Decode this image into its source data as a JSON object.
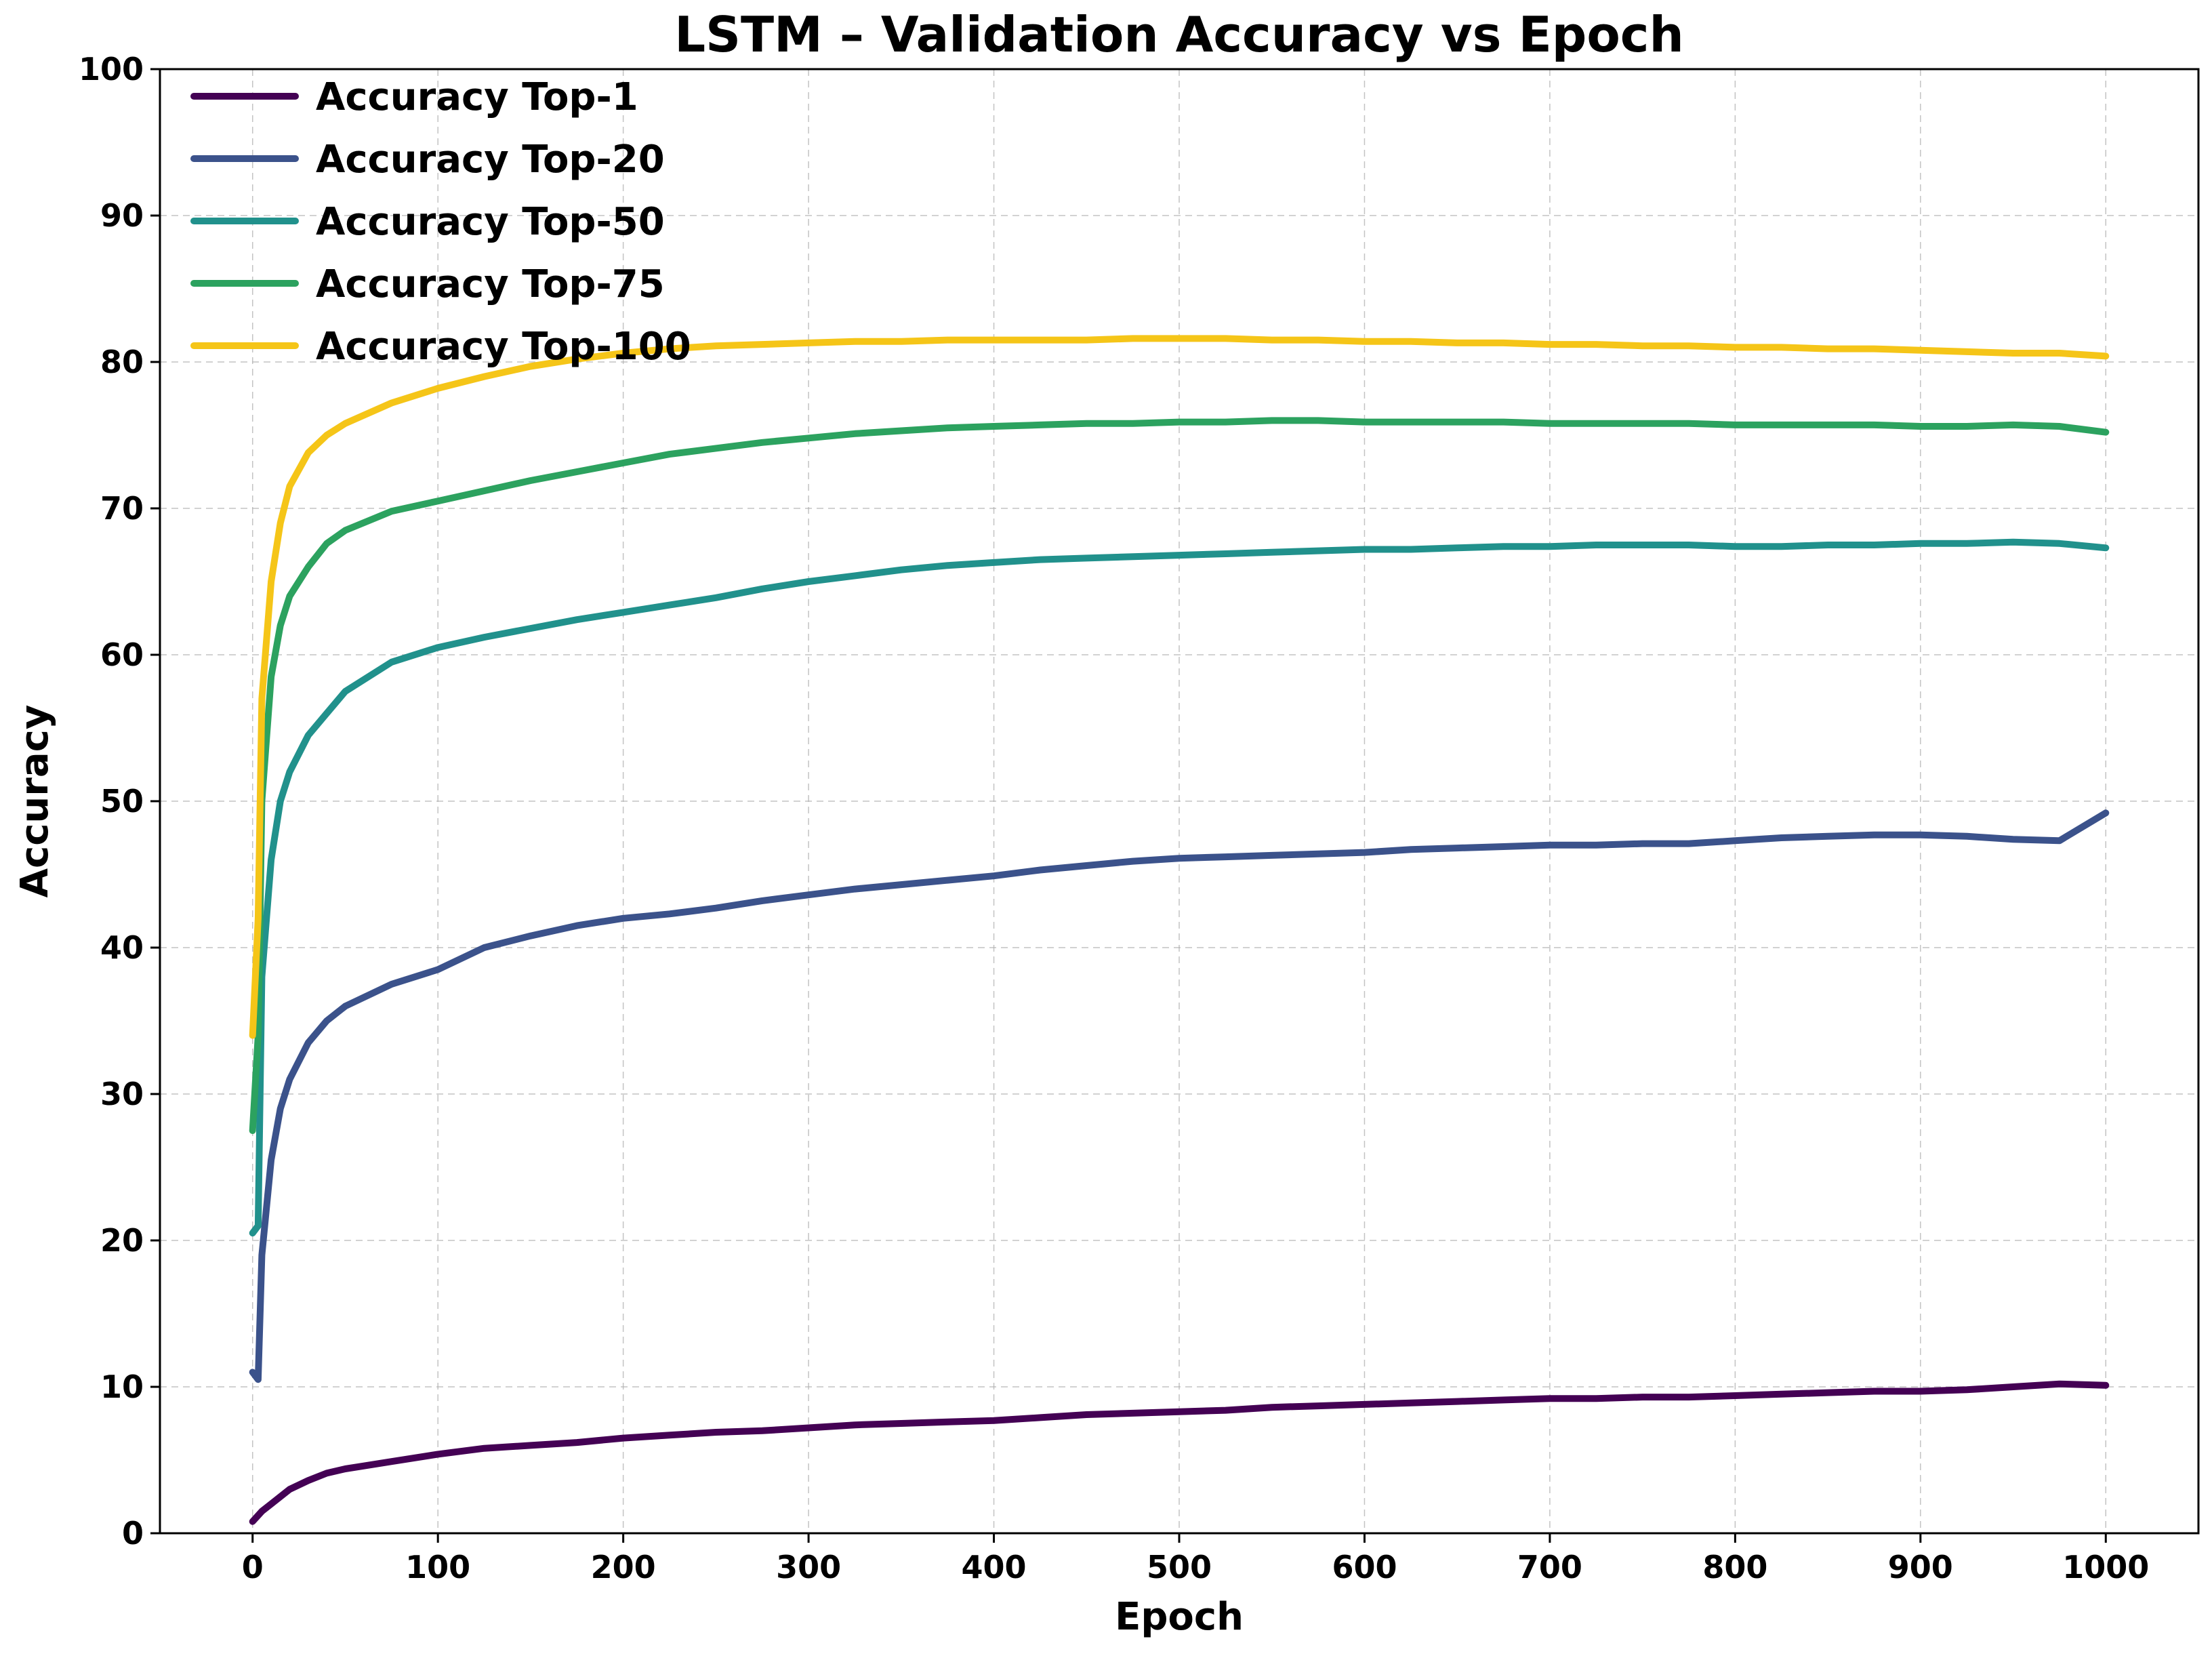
{
  "chart_data": {
    "type": "line",
    "title": "LSTM – Validation Accuracy vs Epoch",
    "xlabel": "Epoch",
    "ylabel": "Accuracy",
    "xlim": [
      -50,
      1050
    ],
    "ylim": [
      0,
      100
    ],
    "xticks": [
      0,
      100,
      200,
      300,
      400,
      500,
      600,
      700,
      800,
      900,
      1000
    ],
    "yticks": [
      0,
      10,
      20,
      30,
      40,
      50,
      60,
      70,
      80,
      90,
      100
    ],
    "grid": true,
    "legend_location": "top-left",
    "series": [
      {
        "name": "Accuracy Top-1",
        "color": "#440154",
        "x": [
          0,
          5,
          10,
          20,
          30,
          40,
          50,
          75,
          100,
          125,
          150,
          175,
          200,
          225,
          250,
          275,
          300,
          325,
          350,
          375,
          400,
          425,
          450,
          475,
          500,
          525,
          550,
          575,
          600,
          625,
          650,
          675,
          700,
          725,
          750,
          775,
          800,
          825,
          850,
          875,
          900,
          925,
          950,
          975,
          1000
        ],
        "values": [
          0.8,
          1.5,
          2.0,
          3.0,
          3.6,
          4.1,
          4.4,
          4.9,
          5.4,
          5.8,
          6.0,
          6.2,
          6.5,
          6.7,
          6.9,
          7.0,
          7.2,
          7.4,
          7.5,
          7.6,
          7.7,
          7.9,
          8.1,
          8.2,
          8.3,
          8.4,
          8.6,
          8.7,
          8.8,
          8.9,
          9.0,
          9.1,
          9.2,
          9.2,
          9.3,
          9.3,
          9.4,
          9.5,
          9.6,
          9.7,
          9.7,
          9.8,
          10.0,
          10.2,
          10.1
        ]
      },
      {
        "name": "Accuracy Top-20",
        "color": "#3b528b",
        "x": [
          0,
          3,
          5,
          10,
          15,
          20,
          30,
          40,
          50,
          75,
          100,
          125,
          150,
          175,
          200,
          225,
          250,
          275,
          300,
          325,
          350,
          375,
          400,
          425,
          450,
          475,
          500,
          525,
          550,
          575,
          600,
          625,
          650,
          675,
          700,
          725,
          750,
          775,
          800,
          825,
          850,
          875,
          900,
          925,
          950,
          975,
          1000
        ],
        "values": [
          11.0,
          10.5,
          19.0,
          25.5,
          29.0,
          31.0,
          33.5,
          35.0,
          36.0,
          37.5,
          38.5,
          40.0,
          40.8,
          41.5,
          42.0,
          42.3,
          42.7,
          43.2,
          43.6,
          44.0,
          44.3,
          44.6,
          44.9,
          45.3,
          45.6,
          45.9,
          46.1,
          46.2,
          46.3,
          46.4,
          46.5,
          46.7,
          46.8,
          46.9,
          47.0,
          47.0,
          47.1,
          47.1,
          47.3,
          47.5,
          47.6,
          47.7,
          47.7,
          47.6,
          47.4,
          47.3,
          49.2
        ]
      },
      {
        "name": "Accuracy Top-50",
        "color": "#21918c",
        "x": [
          0,
          3,
          5,
          10,
          15,
          20,
          30,
          40,
          50,
          75,
          100,
          125,
          150,
          175,
          200,
          225,
          250,
          275,
          300,
          325,
          350,
          375,
          400,
          425,
          450,
          475,
          500,
          525,
          550,
          575,
          600,
          625,
          650,
          675,
          700,
          725,
          750,
          775,
          800,
          825,
          850,
          875,
          900,
          925,
          950,
          975,
          1000
        ],
        "values": [
          20.5,
          21.0,
          38.0,
          46.0,
          50.0,
          52.0,
          54.5,
          56.0,
          57.5,
          59.5,
          60.5,
          61.2,
          61.8,
          62.4,
          62.9,
          63.4,
          63.9,
          64.5,
          65.0,
          65.4,
          65.8,
          66.1,
          66.3,
          66.5,
          66.6,
          66.7,
          66.8,
          66.9,
          67.0,
          67.1,
          67.2,
          67.2,
          67.3,
          67.4,
          67.4,
          67.5,
          67.5,
          67.5,
          67.4,
          67.4,
          67.5,
          67.5,
          67.6,
          67.6,
          67.7,
          67.6,
          67.3
        ]
      },
      {
        "name": "Accuracy Top-75",
        "color": "#2ca25f",
        "x": [
          0,
          3,
          5,
          10,
          15,
          20,
          30,
          40,
          50,
          75,
          100,
          125,
          150,
          175,
          200,
          225,
          250,
          275,
          300,
          325,
          350,
          375,
          400,
          425,
          450,
          475,
          500,
          525,
          550,
          575,
          600,
          625,
          650,
          675,
          700,
          725,
          750,
          775,
          800,
          825,
          850,
          875,
          900,
          925,
          950,
          975,
          1000
        ],
        "values": [
          27.5,
          34.0,
          50.0,
          58.5,
          62.0,
          64.0,
          66.0,
          67.6,
          68.5,
          69.8,
          70.5,
          71.2,
          71.9,
          72.5,
          73.1,
          73.7,
          74.1,
          74.5,
          74.8,
          75.1,
          75.3,
          75.5,
          75.6,
          75.7,
          75.8,
          75.8,
          75.9,
          75.9,
          76.0,
          76.0,
          75.9,
          75.9,
          75.9,
          75.9,
          75.8,
          75.8,
          75.8,
          75.8,
          75.7,
          75.7,
          75.7,
          75.7,
          75.6,
          75.6,
          75.7,
          75.6,
          75.2
        ]
      },
      {
        "name": "Accuracy Top-100",
        "color": "#f5c518",
        "x": [
          0,
          3,
          5,
          10,
          15,
          20,
          30,
          40,
          50,
          75,
          100,
          125,
          150,
          175,
          200,
          225,
          250,
          275,
          300,
          325,
          350,
          375,
          400,
          425,
          450,
          475,
          500,
          525,
          550,
          575,
          600,
          625,
          650,
          675,
          700,
          725,
          750,
          775,
          800,
          825,
          850,
          875,
          900,
          925,
          950,
          975,
          1000
        ],
        "values": [
          34.0,
          42.0,
          57.0,
          65.0,
          69.0,
          71.5,
          73.8,
          75.0,
          75.8,
          77.2,
          78.2,
          79.0,
          79.7,
          80.2,
          80.6,
          80.9,
          81.1,
          81.2,
          81.3,
          81.4,
          81.4,
          81.5,
          81.5,
          81.5,
          81.5,
          81.6,
          81.6,
          81.6,
          81.5,
          81.5,
          81.4,
          81.4,
          81.3,
          81.3,
          81.2,
          81.2,
          81.1,
          81.1,
          81.0,
          81.0,
          80.9,
          80.9,
          80.8,
          80.7,
          80.6,
          80.6,
          80.4
        ]
      }
    ]
  }
}
